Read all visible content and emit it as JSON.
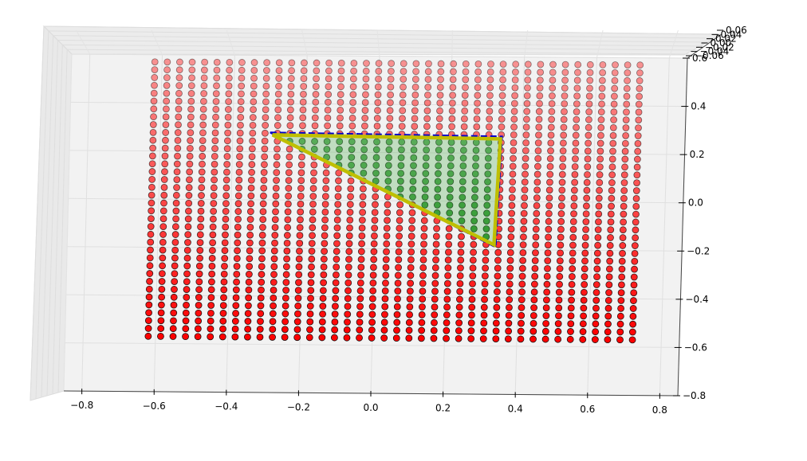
{
  "chart_data": {
    "type": "scatter",
    "projection": "3d",
    "title": "",
    "xlabel": "",
    "ylabel": "",
    "zlabel": "",
    "xlim": [
      -0.85,
      0.85
    ],
    "ylim": [
      -0.8,
      0.6
    ],
    "zlim": [
      -0.06,
      0.06
    ],
    "x_ticks": [
      "−0.8",
      "−0.6",
      "−0.4",
      "−0.2",
      "0.0",
      "0.2",
      "0.4",
      "0.6",
      "0.8"
    ],
    "y_ticks": [
      "−0.8",
      "−0.6",
      "−0.4",
      "−0.2",
      "0.0",
      "0.2",
      "0.4",
      "0.6"
    ],
    "z_ticks": [
      "−0.06",
      "−0.04",
      "−0.02",
      "0.00",
      "0.02",
      "0.04",
      "0.06"
    ],
    "grid": true,
    "point_grid": {
      "x_start": -0.62,
      "x_end": 0.72,
      "x_count": 40,
      "y_start": -0.57,
      "y_end": 0.57,
      "y_count": 36,
      "z": 0.0
    },
    "triangle": {
      "vertices": [
        [
          -0.29,
          0.27
        ],
        [
          0.34,
          0.26
        ],
        [
          0.33,
          -0.18
        ]
      ],
      "fill_color": "#2ca02c",
      "edge_color_solid": "#bfbf00",
      "edge_color_dashed": "#0000cc"
    },
    "colors": {
      "point_outside": "#ff0000",
      "point_inside": "#008000",
      "point_edge": "#000000",
      "pane": "#f2f2f2",
      "grid": "#e0e0e0"
    }
  }
}
